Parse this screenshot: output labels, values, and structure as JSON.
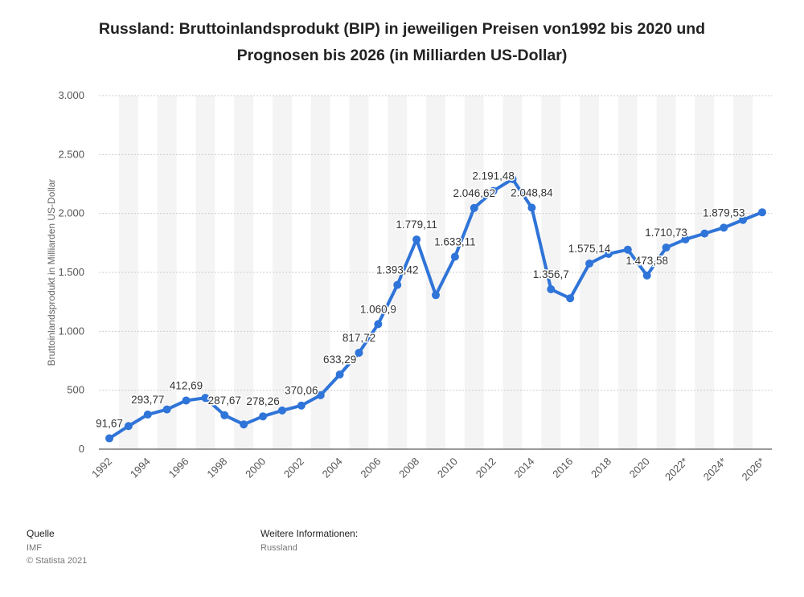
{
  "chart_data": {
    "type": "line",
    "title": "Russland: Bruttoinlandsprodukt (BIP) in jeweiligen Preisen von1992 bis 2020 und Prognosen bis 2026 (in Milliarden US-Dollar)",
    "y_label": "Bruttoinlandsprodukt in Milliarden US-Dollar",
    "categories": [
      "1992",
      null,
      "1994",
      null,
      "1996",
      null,
      "1998",
      null,
      "2000",
      null,
      "2002",
      null,
      "2004",
      null,
      "2006",
      null,
      "2008",
      null,
      "2010",
      null,
      "2012",
      null,
      "2014",
      null,
      "2016",
      null,
      "2018",
      null,
      "2020",
      null,
      "2022*",
      null,
      "2024*",
      null,
      "2026*"
    ],
    "values": [
      91.67,
      196,
      293.77,
      337,
      412.69,
      435,
      287.67,
      210,
      278.26,
      328,
      370.06,
      458,
      633.29,
      817.72,
      1060.9,
      1393.42,
      1779.11,
      1307,
      1633.11,
      2046.62,
      2191.48,
      2292,
      2048.84,
      1356.7,
      1280,
      1575.14,
      1657,
      1693,
      1473.58,
      1710.73,
      1780,
      1830,
      1879.53,
      1945,
      2010
    ],
    "value_labels": [
      "91,67",
      null,
      "293,77",
      null,
      "412,69",
      null,
      "287,67",
      null,
      "278,26",
      null,
      "370,06",
      null,
      "633,29",
      "817,72",
      "1.060,9",
      "1.393,42",
      "1.779,11",
      null,
      "1.633,11",
      "2.046,62",
      "2.191,48",
      null,
      "2.048,84",
      "1.356,7",
      null,
      "1.575,14",
      null,
      null,
      "1.473,58",
      "1.710,73",
      null,
      null,
      "1.879,53",
      null,
      null
    ],
    "color": "#2f74d8",
    "ylim": [
      0,
      3000
    ],
    "yticks": [
      0,
      500,
      {
        "value": 1000,
        "label": "1.000"
      },
      {
        "value": 1500,
        "label": "1.500"
      },
      {
        "value": 2000,
        "label": "2.000"
      },
      {
        "value": 2500,
        "label": "2.500"
      },
      {
        "value": 3000,
        "label": "3.000"
      }
    ],
    "grid": true
  },
  "footer": {
    "source_heading": "Quelle",
    "source": "IMF",
    "copyright": "© Statista 2021",
    "info_heading": "Weitere Informationen:",
    "info": "Russland"
  }
}
